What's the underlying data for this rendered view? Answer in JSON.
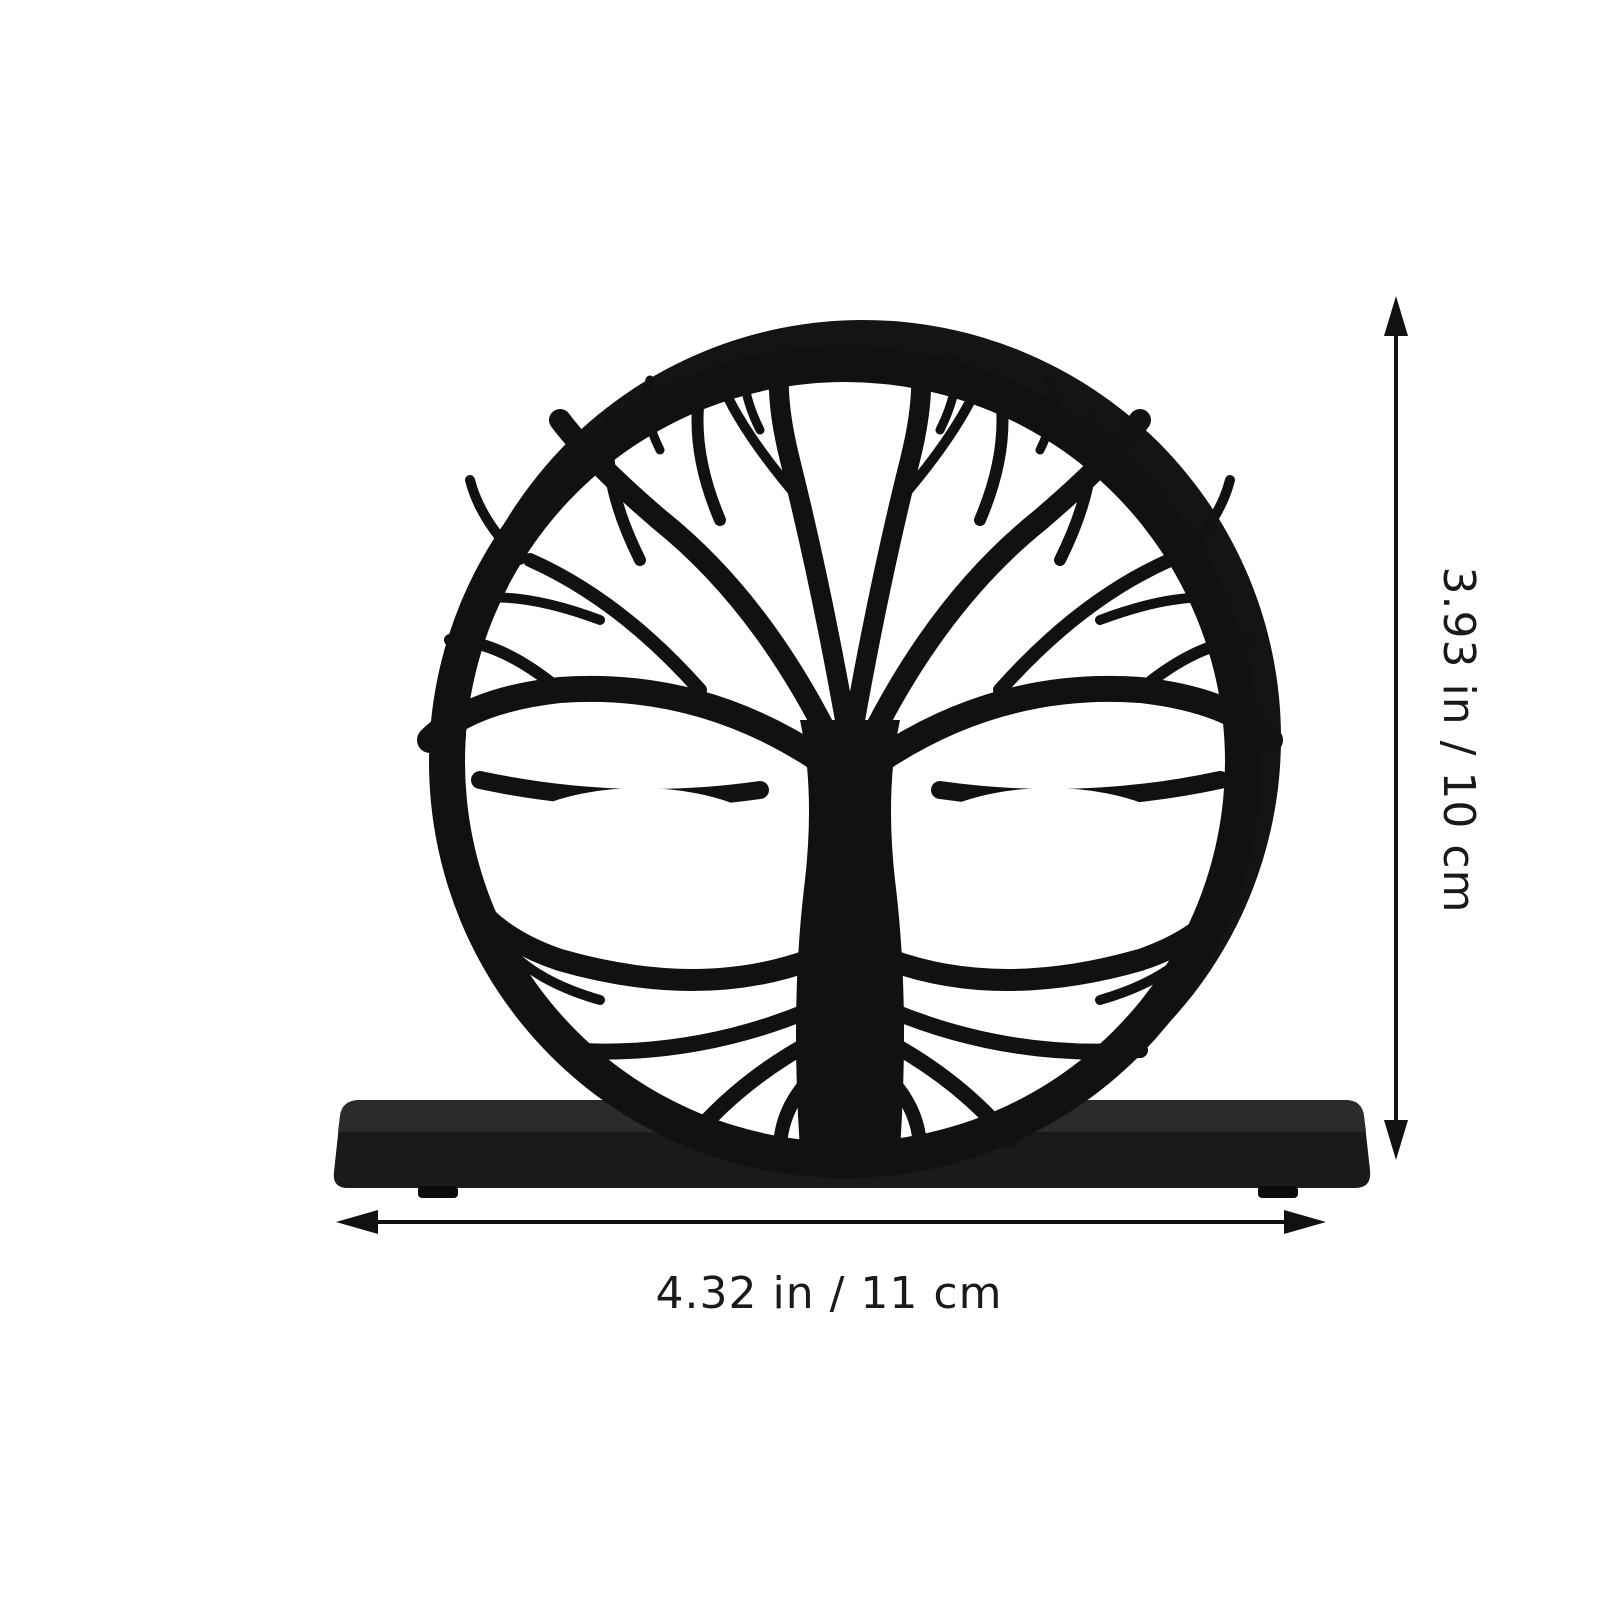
{
  "product": {
    "icon": "tree-of-life-napkin-holder",
    "color": "#111111"
  },
  "dimensions": {
    "width_label": "4.32 in / 11 cm",
    "height_label": "3.93 in / 10 cm"
  }
}
